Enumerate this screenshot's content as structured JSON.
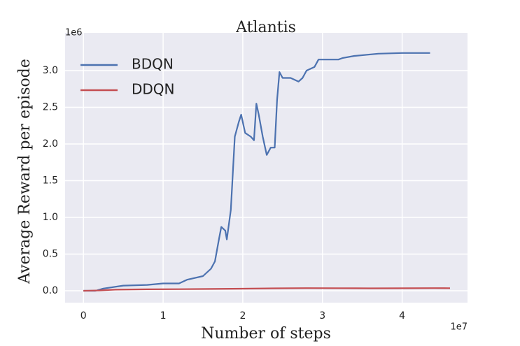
{
  "chart_data": {
    "type": "line",
    "title": "Atlantis",
    "x_label": "Number of steps",
    "y_label": "Average Reward per episode",
    "x_offset_label": "1e7",
    "y_offset_label": "1e6",
    "xlim": [
      -2300000,
      48200000
    ],
    "ylim": [
      -162000,
      3514000
    ],
    "xticks": [
      {
        "value": 0,
        "label": "0"
      },
      {
        "value": 10000000,
        "label": "1"
      },
      {
        "value": 20000000,
        "label": "2"
      },
      {
        "value": 30000000,
        "label": "3"
      },
      {
        "value": 40000000,
        "label": "4"
      }
    ],
    "yticks": [
      {
        "value": 0,
        "label": "0.0"
      },
      {
        "value": 500000,
        "label": "0.5"
      },
      {
        "value": 1000000,
        "label": "1.0"
      },
      {
        "value": 1500000,
        "label": "1.5"
      },
      {
        "value": 2000000,
        "label": "2.0"
      },
      {
        "value": 2500000,
        "label": "2.5"
      },
      {
        "value": 3000000,
        "label": "3.0"
      }
    ],
    "grid": true,
    "legend": "upper-left",
    "series": [
      {
        "name": "BDQN",
        "color": "#4c72b0",
        "x": [
          0,
          1500000,
          2500000,
          5000000,
          8000000,
          10000000,
          12000000,
          13000000,
          15000000,
          16000000,
          16500000,
          17000000,
          17300000,
          17800000,
          18000000,
          18500000,
          19000000,
          19500000,
          19800000,
          20300000,
          21000000,
          21400000,
          21700000,
          22000000,
          22500000,
          23000000,
          23500000,
          24000000,
          24300000,
          24600000,
          25000000,
          26000000,
          27000000,
          27500000,
          28000000,
          29000000,
          29500000,
          31000000,
          32000000,
          32500000,
          34000000,
          37000000,
          40000000,
          43500000
        ],
        "values": [
          0,
          0,
          30000,
          70000,
          80000,
          100000,
          100000,
          150000,
          200000,
          300000,
          400000,
          700000,
          870000,
          820000,
          700000,
          1100000,
          2100000,
          2300000,
          2400000,
          2150000,
          2100000,
          2050000,
          2550000,
          2400000,
          2100000,
          1850000,
          1950000,
          1950000,
          2600000,
          2980000,
          2900000,
          2900000,
          2850000,
          2900000,
          3000000,
          3050000,
          3150000,
          3150000,
          3150000,
          3170000,
          3200000,
          3230000,
          3240000,
          3240000
        ]
      },
      {
        "name": "DDQN",
        "color": "#c44e52",
        "x": [
          0,
          2000000,
          4000000,
          8000000,
          12000000,
          16000000,
          20000000,
          24000000,
          28000000,
          32000000,
          36000000,
          40000000,
          44000000,
          46000000
        ],
        "values": [
          0,
          5000,
          15000,
          20000,
          22000,
          25000,
          28000,
          33000,
          36000,
          35000,
          33000,
          34000,
          36000,
          35000
        ]
      }
    ]
  }
}
